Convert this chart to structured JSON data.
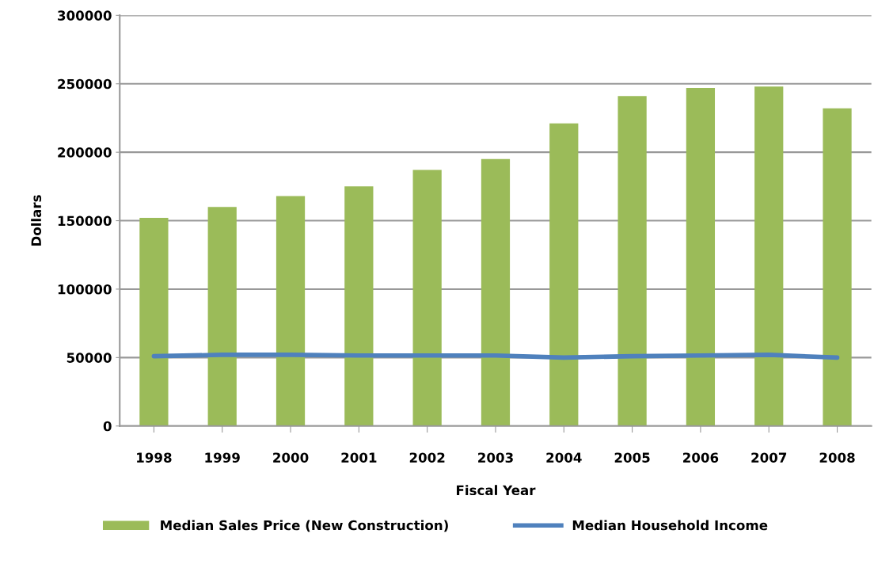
{
  "chart_data": {
    "type": "bar",
    "xlabel": "Fiscal Year",
    "ylabel": "Dollars",
    "categories": [
      "1998",
      "1999",
      "2000",
      "2001",
      "2002",
      "2003",
      "2004",
      "2005",
      "2006",
      "2007",
      "2008"
    ],
    "series": [
      {
        "name": "Median Sales Price (New Construction)",
        "color": "#9bbb59",
        "values": [
          152000,
          160000,
          168000,
          175000,
          187000,
          195000,
          221000,
          241000,
          247000,
          248000,
          232000
        ]
      },
      {
        "name": "Median Household Income",
        "type": "line",
        "color": "#4f81bd",
        "values": [
          51000,
          52000,
          52000,
          51500,
          51500,
          51500,
          50000,
          51000,
          51500,
          52000,
          50000
        ]
      }
    ],
    "ylim": [
      0,
      300000
    ],
    "yticks": [
      0,
      50000,
      100000,
      150000,
      200000,
      250000,
      300000
    ],
    "grid": "y",
    "legend": "bottom",
    "marker": "none",
    "line_style": "solid"
  }
}
